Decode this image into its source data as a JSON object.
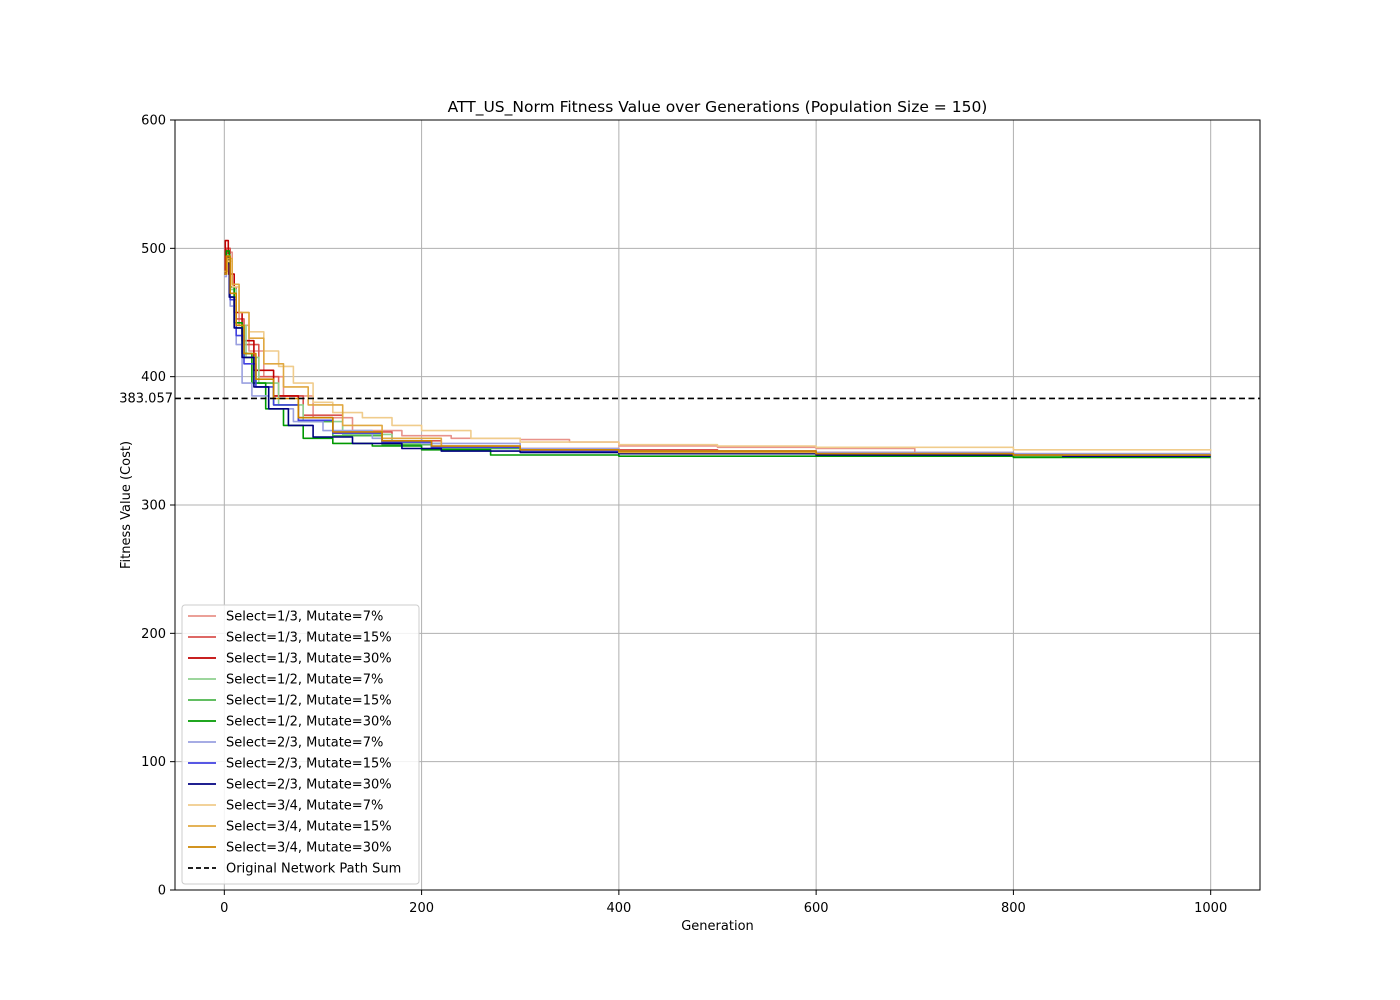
{
  "chart_data": {
    "type": "line",
    "title": "ATT_US_Norm Fitness Value over Generations (Population Size = 150)",
    "xlabel": "Generation",
    "ylabel": "Fitness Value (Cost)",
    "xlim": [
      -50,
      1050
    ],
    "ylim": [
      0,
      600
    ],
    "xticks": [
      0,
      200,
      400,
      600,
      800,
      1000
    ],
    "yticks": [
      0,
      100,
      200,
      300,
      400,
      500,
      600
    ],
    "grid": true,
    "legend_position": "lower-left",
    "reference_line": {
      "name": "Original Network Path Sum",
      "value": 383.057,
      "label": "383.057",
      "color": "#000000",
      "style": "dashed"
    },
    "series": [
      {
        "name": "Select=1/3, Mutate=7%",
        "color": "#e8928a",
        "points": [
          [
            0,
            485
          ],
          [
            3,
            497
          ],
          [
            8,
            470
          ],
          [
            15,
            440
          ],
          [
            25,
            420
          ],
          [
            40,
            400
          ],
          [
            60,
            385
          ],
          [
            90,
            368
          ],
          [
            130,
            358
          ],
          [
            180,
            354
          ],
          [
            230,
            352
          ],
          [
            300,
            351
          ],
          [
            350,
            349
          ],
          [
            400,
            346
          ],
          [
            500,
            345
          ],
          [
            600,
            344
          ],
          [
            700,
            341
          ],
          [
            800,
            340
          ],
          [
            900,
            340
          ],
          [
            1000,
            340
          ]
        ]
      },
      {
        "name": "Select=1/3, Mutate=15%",
        "color": "#d9534f",
        "points": [
          [
            0,
            482
          ],
          [
            2,
            500
          ],
          [
            6,
            470
          ],
          [
            12,
            445
          ],
          [
            20,
            425
          ],
          [
            35,
            400
          ],
          [
            55,
            385
          ],
          [
            80,
            370
          ],
          [
            120,
            357
          ],
          [
            170,
            350
          ],
          [
            220,
            345
          ],
          [
            300,
            344
          ],
          [
            400,
            343
          ],
          [
            500,
            342
          ],
          [
            600,
            341
          ],
          [
            700,
            340
          ],
          [
            800,
            339
          ],
          [
            1000,
            339
          ]
        ]
      },
      {
        "name": "Select=1/3, Mutate=30%",
        "color": "#c00000",
        "points": [
          [
            0,
            480
          ],
          [
            1,
            506
          ],
          [
            4,
            480
          ],
          [
            10,
            450
          ],
          [
            18,
            428
          ],
          [
            30,
            405
          ],
          [
            50,
            385
          ],
          [
            75,
            368
          ],
          [
            110,
            356
          ],
          [
            160,
            349
          ],
          [
            210,
            345
          ],
          [
            300,
            343
          ],
          [
            400,
            342
          ],
          [
            600,
            340
          ],
          [
            800,
            339
          ],
          [
            1000,
            339
          ]
        ]
      },
      {
        "name": "Select=1/2, Mutate=7%",
        "color": "#8fd18f",
        "points": [
          [
            0,
            480
          ],
          [
            2,
            495
          ],
          [
            6,
            468
          ],
          [
            12,
            440
          ],
          [
            22,
            415
          ],
          [
            35,
            395
          ],
          [
            55,
            378
          ],
          [
            80,
            365
          ],
          [
            120,
            355
          ],
          [
            170,
            348
          ],
          [
            220,
            344
          ],
          [
            300,
            342
          ],
          [
            400,
            341
          ],
          [
            600,
            340
          ],
          [
            800,
            339
          ],
          [
            1000,
            339
          ]
        ]
      },
      {
        "name": "Select=1/2, Mutate=15%",
        "color": "#4cb44c",
        "points": [
          [
            0,
            482
          ],
          [
            2,
            492
          ],
          [
            6,
            462
          ],
          [
            12,
            438
          ],
          [
            20,
            415
          ],
          [
            32,
            395
          ],
          [
            50,
            378
          ],
          [
            75,
            365
          ],
          [
            110,
            354
          ],
          [
            160,
            347
          ],
          [
            210,
            344
          ],
          [
            300,
            341
          ],
          [
            400,
            340
          ],
          [
            600,
            339
          ],
          [
            800,
            338
          ],
          [
            1000,
            338
          ]
        ]
      },
      {
        "name": "Select=1/2, Mutate=30%",
        "color": "#009900",
        "points": [
          [
            0,
            480
          ],
          [
            2,
            498
          ],
          [
            5,
            470
          ],
          [
            10,
            442
          ],
          [
            18,
            418
          ],
          [
            28,
            395
          ],
          [
            42,
            375
          ],
          [
            60,
            362
          ],
          [
            80,
            352
          ],
          [
            110,
            348
          ],
          [
            150,
            346
          ],
          [
            200,
            343
          ],
          [
            270,
            339
          ],
          [
            400,
            338
          ],
          [
            600,
            338
          ],
          [
            800,
            337
          ],
          [
            1000,
            337
          ]
        ]
      },
      {
        "name": "Select=2/3, Mutate=7%",
        "color": "#9aa0e0",
        "points": [
          [
            0,
            478
          ],
          [
            2,
            490
          ],
          [
            6,
            455
          ],
          [
            12,
            425
          ],
          [
            18,
            395
          ],
          [
            28,
            385
          ],
          [
            45,
            375
          ],
          [
            70,
            365
          ],
          [
            100,
            358
          ],
          [
            150,
            352
          ],
          [
            200,
            348
          ],
          [
            300,
            344
          ],
          [
            400,
            342
          ],
          [
            600,
            341
          ],
          [
            800,
            340
          ],
          [
            1000,
            340
          ]
        ]
      },
      {
        "name": "Select=2/3, Mutate=15%",
        "color": "#4040e0",
        "points": [
          [
            0,
            480
          ],
          [
            2,
            492
          ],
          [
            6,
            460
          ],
          [
            12,
            432
          ],
          [
            20,
            410
          ],
          [
            32,
            392
          ],
          [
            50,
            378
          ],
          [
            75,
            366
          ],
          [
            110,
            356
          ],
          [
            160,
            349
          ],
          [
            210,
            345
          ],
          [
            300,
            342
          ],
          [
            400,
            341
          ],
          [
            600,
            340
          ],
          [
            800,
            339
          ],
          [
            1000,
            339
          ]
        ]
      },
      {
        "name": "Select=2/3, Mutate=30%",
        "color": "#000080",
        "points": [
          [
            0,
            480
          ],
          [
            2,
            488
          ],
          [
            5,
            462
          ],
          [
            10,
            438
          ],
          [
            18,
            415
          ],
          [
            30,
            392
          ],
          [
            45,
            375
          ],
          [
            65,
            362
          ],
          [
            90,
            353
          ],
          [
            130,
            348
          ],
          [
            180,
            344
          ],
          [
            220,
            342
          ],
          [
            300,
            341
          ],
          [
            400,
            340
          ],
          [
            600,
            339
          ],
          [
            830,
            339
          ],
          [
            850,
            338
          ],
          [
            1000,
            338
          ]
        ]
      },
      {
        "name": "Select=3/4, Mutate=7%",
        "color": "#f0cc8c",
        "points": [
          [
            0,
            480
          ],
          [
            3,
            490
          ],
          [
            8,
            470
          ],
          [
            15,
            450
          ],
          [
            25,
            435
          ],
          [
            40,
            420
          ],
          [
            55,
            408
          ],
          [
            70,
            395
          ],
          [
            90,
            380
          ],
          [
            110,
            372
          ],
          [
            140,
            368
          ],
          [
            170,
            362
          ],
          [
            200,
            358
          ],
          [
            250,
            352
          ],
          [
            300,
            349
          ],
          [
            400,
            347
          ],
          [
            500,
            346
          ],
          [
            600,
            345
          ],
          [
            800,
            343
          ],
          [
            1000,
            342
          ]
        ]
      },
      {
        "name": "Select=3/4, Mutate=15%",
        "color": "#e0a840",
        "points": [
          [
            0,
            482
          ],
          [
            3,
            492
          ],
          [
            8,
            472
          ],
          [
            15,
            450
          ],
          [
            25,
            430
          ],
          [
            40,
            410
          ],
          [
            60,
            392
          ],
          [
            85,
            378
          ],
          [
            120,
            362
          ],
          [
            160,
            352
          ],
          [
            220,
            346
          ],
          [
            300,
            343
          ],
          [
            400,
            341
          ],
          [
            600,
            340
          ],
          [
            800,
            339
          ],
          [
            1000,
            339
          ]
        ]
      },
      {
        "name": "Select=3/4, Mutate=30%",
        "color": "#cc8400",
        "points": [
          [
            0,
            480
          ],
          [
            2,
            494
          ],
          [
            6,
            465
          ],
          [
            12,
            440
          ],
          [
            20,
            418
          ],
          [
            32,
            398
          ],
          [
            50,
            383
          ],
          [
            75,
            368
          ],
          [
            110,
            357
          ],
          [
            160,
            350
          ],
          [
            210,
            346
          ],
          [
            300,
            343
          ],
          [
            400,
            342
          ],
          [
            600,
            340
          ],
          [
            800,
            339
          ],
          [
            1000,
            339
          ]
        ]
      }
    ]
  }
}
